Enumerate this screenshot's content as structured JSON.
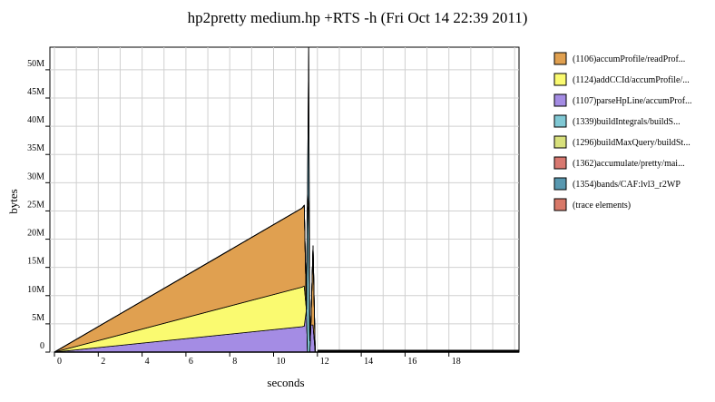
{
  "chart_data": {
    "type": "area",
    "title": "hp2pretty medium.hp +RTS -h (Fri Oct 14 22:39 2011)",
    "xlabel": "seconds",
    "ylabel": "bytes",
    "xlim": [
      0,
      21.2
    ],
    "ylim": [
      0,
      54000000
    ],
    "x_ticks": [
      0,
      2,
      4,
      6,
      8,
      10,
      12,
      14,
      16,
      18
    ],
    "x_tick_labels": [
      "0",
      "2",
      "4",
      "6",
      "8",
      "10",
      "12",
      "14",
      "16",
      "18"
    ],
    "y_ticks": [
      0,
      5000000,
      10000000,
      15000000,
      20000000,
      25000000,
      30000000,
      35000000,
      40000000,
      45000000,
      50000000
    ],
    "y_tick_labels": [
      "0",
      "5M",
      "10M",
      "15M",
      "20M",
      "25M",
      "30M",
      "35M",
      "40M",
      "45M",
      "50M"
    ],
    "grid": true,
    "legend_position": "right",
    "x": [
      0,
      11.3,
      11.4,
      11.5,
      11.55,
      11.6,
      11.65,
      11.7,
      11.8,
      11.9,
      12.0,
      21.2
    ],
    "series": [
      {
        "name": "(1107)parseHpLine/accumProf...",
        "color": "#a48ce4",
        "values": [
          0,
          4500000,
          4600000,
          7500000,
          0,
          0,
          0,
          4800000,
          4800000,
          0,
          0,
          0
        ]
      },
      {
        "name": "(1124)addCCId/accumProfile/...",
        "color": "#fafa70",
        "values": [
          0,
          7000000,
          7100000,
          0,
          0,
          0,
          0,
          0,
          0,
          0,
          0,
          0
        ]
      },
      {
        "name": "(1106)accumProfile/readProf...",
        "color": "#e0a050",
        "values": [
          0,
          14000000,
          14300000,
          0,
          0,
          0,
          0,
          0,
          14000000,
          0,
          0,
          0
        ]
      },
      {
        "name": "(1339)buildIntegrals/buildS...",
        "color": "#80c8d4",
        "values": [
          0,
          0,
          0,
          0,
          25000000,
          26000000,
          2000000,
          0,
          0,
          0,
          0,
          0
        ]
      },
      {
        "name": "(1296)buildMaxQuery/buildSt...",
        "color": "#d8e07c",
        "values": [
          0,
          0,
          0,
          0,
          3000000,
          0,
          0,
          0,
          0,
          0,
          0,
          0
        ]
      },
      {
        "name": "(1362)accumulate/pretty/mai...",
        "color": "#d87870",
        "values": [
          0,
          0,
          0,
          0,
          0,
          0,
          0,
          0,
          0,
          0,
          0,
          0
        ]
      },
      {
        "name": "(1354)bands/CAF:lvl3_r2WP",
        "color": "#5898b0",
        "values": [
          0,
          0,
          0,
          0,
          0,
          28000000,
          0,
          0,
          0,
          0,
          0,
          0
        ]
      },
      {
        "name": "(trace elements)",
        "color": "#d87868",
        "values": [
          0,
          0,
          0,
          0,
          0,
          0,
          0,
          0,
          0,
          0,
          0,
          0
        ]
      }
    ],
    "legend": [
      {
        "name": "(1106)accumProfile/readProf...",
        "color": "#e0a050"
      },
      {
        "name": "(1124)addCCId/accumProfile/...",
        "color": "#fafa70"
      },
      {
        "name": "(1107)parseHpLine/accumProf...",
        "color": "#a48ce4"
      },
      {
        "name": "(1339)buildIntegrals/buildS...",
        "color": "#80c8d4"
      },
      {
        "name": "(1296)buildMaxQuery/buildSt...",
        "color": "#d8e07c"
      },
      {
        "name": "(1362)accumulate/pretty/mai...",
        "color": "#d87870"
      },
      {
        "name": "(1354)bands/CAF:lvl3_r2WP",
        "color": "#5898b0"
      },
      {
        "name": "(trace elements)",
        "color": "#d87868"
      }
    ]
  }
}
